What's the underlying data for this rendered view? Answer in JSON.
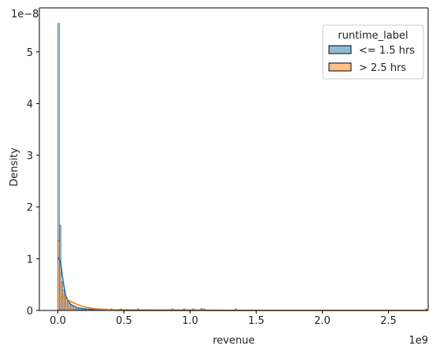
{
  "chart_data": {
    "type": "histogram",
    "xlabel": "revenue",
    "ylabel": "Density",
    "x_scale_label": "1e9",
    "y_scale_label": "1e−8",
    "xlim": [
      -0.14,
      2.8
    ],
    "ylim": [
      0,
      5.85
    ],
    "x_ticks": [
      0.0,
      0.5,
      1.0,
      1.5,
      2.0,
      2.5
    ],
    "x_tick_labels": [
      "0.0",
      "0.5",
      "1.0",
      "1.5",
      "2.0",
      "2.5"
    ],
    "y_ticks": [
      0,
      1,
      2,
      3,
      4,
      5
    ],
    "y_tick_labels": [
      "0",
      "1",
      "2",
      "3",
      "4",
      "5"
    ],
    "legend": {
      "title": "runtime_label",
      "placement": "top-right",
      "entries": [
        "<= 1.5 hrs",
        "> 2.5 hrs"
      ]
    },
    "series": [
      {
        "name": "<= 1.5 hrs",
        "color": "#1f77b4",
        "fill": "#8fbbd9",
        "bin_width": 0.0118,
        "bins": [
          {
            "x": 0.0,
            "density": 5.55
          },
          {
            "x": 0.0118,
            "density": 1.65
          },
          {
            "x": 0.0236,
            "density": 0.55
          },
          {
            "x": 0.0354,
            "density": 0.32
          },
          {
            "x": 0.0472,
            "density": 0.22
          },
          {
            "x": 0.059,
            "density": 0.15
          },
          {
            "x": 0.0708,
            "density": 0.1
          },
          {
            "x": 0.0826,
            "density": 0.08
          },
          {
            "x": 0.0944,
            "density": 0.06
          },
          {
            "x": 0.1062,
            "density": 0.05
          },
          {
            "x": 0.118,
            "density": 0.04
          },
          {
            "x": 0.13,
            "density": 0.03
          },
          {
            "x": 0.142,
            "density": 0.03
          },
          {
            "x": 0.154,
            "density": 0.02
          },
          {
            "x": 0.166,
            "density": 0.02
          },
          {
            "x": 0.178,
            "density": 0.015
          },
          {
            "x": 0.19,
            "density": 0.01
          },
          {
            "x": 0.202,
            "density": 0.01
          }
        ],
        "kde": [
          {
            "x": 0.0,
            "y": 1.03
          },
          {
            "x": 0.02,
            "y": 0.95
          },
          {
            "x": 0.04,
            "y": 0.55
          },
          {
            "x": 0.06,
            "y": 0.28
          },
          {
            "x": 0.08,
            "y": 0.17
          },
          {
            "x": 0.1,
            "y": 0.11
          },
          {
            "x": 0.15,
            "y": 0.05
          },
          {
            "x": 0.2,
            "y": 0.03
          },
          {
            "x": 0.3,
            "y": 0.01
          },
          {
            "x": 0.5,
            "y": 0.0
          },
          {
            "x": 2.8,
            "y": 0.0
          }
        ]
      },
      {
        "name": "> 2.5 hrs",
        "color": "#ff7f0e",
        "fill": "#ffbf86",
        "bin_width": 0.0118,
        "bins": [
          {
            "x": 0.0,
            "density": 1.35
          },
          {
            "x": 0.0118,
            "density": 0.85
          },
          {
            "x": 0.0236,
            "density": 0.55
          },
          {
            "x": 0.0354,
            "density": 0.4
          },
          {
            "x": 0.0472,
            "density": 0.3
          },
          {
            "x": 0.059,
            "density": 0.25
          },
          {
            "x": 0.0708,
            "density": 0.2
          },
          {
            "x": 0.0826,
            "density": 0.15
          },
          {
            "x": 0.0944,
            "density": 0.12
          },
          {
            "x": 0.1062,
            "density": 0.1
          },
          {
            "x": 0.118,
            "density": 0.08
          },
          {
            "x": 0.142,
            "density": 0.06
          },
          {
            "x": 0.166,
            "density": 0.05
          },
          {
            "x": 0.19,
            "density": 0.04
          },
          {
            "x": 0.236,
            "density": 0.04
          },
          {
            "x": 0.26,
            "density": 0.03
          },
          {
            "x": 0.3,
            "density": 0.03
          },
          {
            "x": 0.36,
            "density": 0.03
          },
          {
            "x": 0.38,
            "density": 0.02
          },
          {
            "x": 0.4,
            "density": 0.03
          },
          {
            "x": 0.44,
            "density": 0.02
          },
          {
            "x": 0.47,
            "density": 0.03
          },
          {
            "x": 0.52,
            "density": 0.02
          },
          {
            "x": 0.6,
            "density": 0.03
          },
          {
            "x": 0.7,
            "density": 0.02
          },
          {
            "x": 0.86,
            "density": 0.03
          },
          {
            "x": 0.95,
            "density": 0.03
          },
          {
            "x": 1.02,
            "density": 0.03
          },
          {
            "x": 1.08,
            "density": 0.04
          },
          {
            "x": 1.1,
            "density": 0.03
          },
          {
            "x": 1.34,
            "density": 0.03
          },
          {
            "x": 2.78,
            "density": 0.03
          }
        ],
        "kde": [
          {
            "x": 0.0,
            "y": 0.22
          },
          {
            "x": 0.03,
            "y": 0.26
          },
          {
            "x": 0.06,
            "y": 0.23
          },
          {
            "x": 0.1,
            "y": 0.17
          },
          {
            "x": 0.15,
            "y": 0.11
          },
          {
            "x": 0.2,
            "y": 0.07
          },
          {
            "x": 0.25,
            "y": 0.045
          },
          {
            "x": 0.3,
            "y": 0.03
          },
          {
            "x": 0.4,
            "y": 0.015
          },
          {
            "x": 0.6,
            "y": 0.01
          },
          {
            "x": 0.8,
            "y": 0.01
          },
          {
            "x": 1.0,
            "y": 0.01
          },
          {
            "x": 1.2,
            "y": 0.005
          },
          {
            "x": 1.5,
            "y": 0.0
          },
          {
            "x": 2.8,
            "y": 0.0
          }
        ]
      }
    ]
  }
}
